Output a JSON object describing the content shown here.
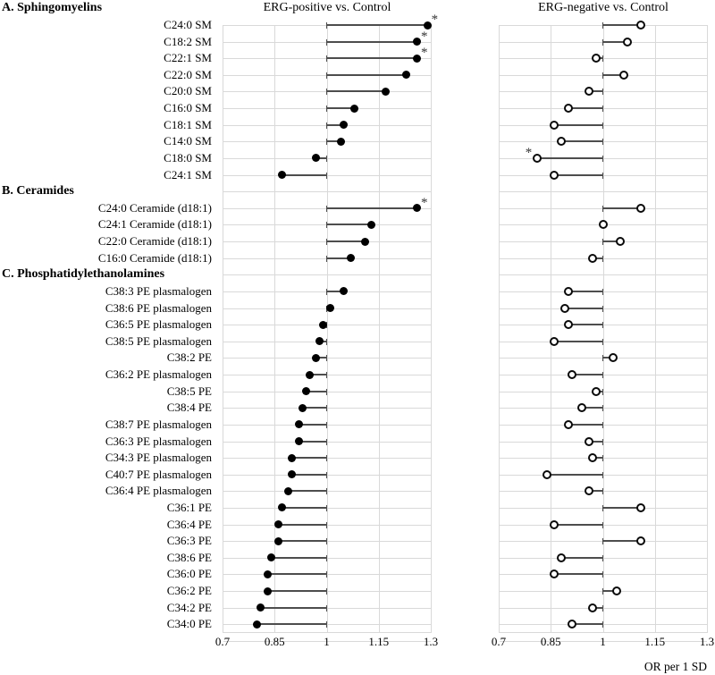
{
  "chart_data": {
    "type": "scatter",
    "subtype": "lollipop-forest-plot",
    "significance_marker": "*",
    "x_axis": {
      "range": [
        0.7,
        1.3
      ],
      "baseline": 1,
      "ticks": [
        0.7,
        0.85,
        1,
        1.15,
        1.3
      ],
      "tick_labels": [
        "0.7",
        "0.85",
        "1",
        "1.15",
        "1.3"
      ],
      "label": "OR per 1 SD",
      "grid": true
    },
    "panels": [
      {
        "title": "ERG-positive vs. Control",
        "marker": "filled-circle"
      },
      {
        "title": "ERG-negative vs. Control",
        "marker": "open-circle"
      }
    ],
    "style": {
      "grid_color": "#d9d9d9",
      "stem_color": "#4d4d4d",
      "marker_color": "#000000",
      "background": "#ffffff"
    },
    "groups": [
      {
        "label": "A. Sphingomyelins",
        "rows": [
          {
            "label": "C24:0 SM",
            "pos": 1.29,
            "pos_sig": true,
            "neg": 1.11,
            "neg_sig": false
          },
          {
            "label": "C18:2 SM",
            "pos": 1.26,
            "pos_sig": true,
            "neg": 1.07,
            "neg_sig": false
          },
          {
            "label": "C22:1 SM",
            "pos": 1.26,
            "pos_sig": true,
            "neg": 0.98,
            "neg_sig": false
          },
          {
            "label": "C22:0 SM",
            "pos": 1.23,
            "pos_sig": false,
            "neg": 1.06,
            "neg_sig": false
          },
          {
            "label": "C20:0 SM",
            "pos": 1.17,
            "pos_sig": false,
            "neg": 0.96,
            "neg_sig": false
          },
          {
            "label": "C16:0 SM",
            "pos": 1.08,
            "pos_sig": false,
            "neg": 0.9,
            "neg_sig": false
          },
          {
            "label": "C18:1 SM",
            "pos": 1.05,
            "pos_sig": false,
            "neg": 0.86,
            "neg_sig": false
          },
          {
            "label": "C14:0 SM",
            "pos": 1.04,
            "pos_sig": false,
            "neg": 0.88,
            "neg_sig": false
          },
          {
            "label": "C18:0 SM",
            "pos": 0.97,
            "pos_sig": false,
            "neg": 0.81,
            "neg_sig": true
          },
          {
            "label": "C24:1 SM",
            "pos": 0.87,
            "pos_sig": false,
            "neg": 0.86,
            "neg_sig": false
          }
        ]
      },
      {
        "label": "B. Ceramides",
        "rows": [
          {
            "label": "C24:0 Ceramide (d18:1)",
            "pos": 1.26,
            "pos_sig": true,
            "neg": 1.11,
            "neg_sig": false
          },
          {
            "label": "C24:1 Ceramide (d18:1)",
            "pos": 1.13,
            "pos_sig": false,
            "neg": 1.0,
            "neg_sig": false
          },
          {
            "label": "C22:0 Ceramide (d18:1)",
            "pos": 1.11,
            "pos_sig": false,
            "neg": 1.05,
            "neg_sig": false
          },
          {
            "label": "C16:0 Ceramide (d18:1)",
            "pos": 1.07,
            "pos_sig": false,
            "neg": 0.97,
            "neg_sig": false
          }
        ]
      },
      {
        "label": "C. Phosphatidylethanolamines",
        "rows": [
          {
            "label": "C38:3 PE plasmalogen",
            "pos": 1.05,
            "pos_sig": false,
            "neg": 0.9,
            "neg_sig": false
          },
          {
            "label": "C38:6 PE plasmalogen",
            "pos": 1.01,
            "pos_sig": false,
            "neg": 0.89,
            "neg_sig": false
          },
          {
            "label": "C36:5 PE plasmalogen",
            "pos": 0.99,
            "pos_sig": false,
            "neg": 0.9,
            "neg_sig": false
          },
          {
            "label": "C38:5 PE plasmalogen",
            "pos": 0.98,
            "pos_sig": false,
            "neg": 0.86,
            "neg_sig": false
          },
          {
            "label": "C38:2 PE",
            "pos": 0.97,
            "pos_sig": false,
            "neg": 1.03,
            "neg_sig": false
          },
          {
            "label": "C36:2 PE plasmalogen",
            "pos": 0.95,
            "pos_sig": false,
            "neg": 0.91,
            "neg_sig": false
          },
          {
            "label": "C38:5 PE",
            "pos": 0.94,
            "pos_sig": false,
            "neg": 0.98,
            "neg_sig": false
          },
          {
            "label": "C38:4 PE",
            "pos": 0.93,
            "pos_sig": false,
            "neg": 0.94,
            "neg_sig": false
          },
          {
            "label": "C38:7 PE plasmalogen",
            "pos": 0.92,
            "pos_sig": false,
            "neg": 0.9,
            "neg_sig": false
          },
          {
            "label": "C36:3 PE plasmalogen",
            "pos": 0.92,
            "pos_sig": false,
            "neg": 0.96,
            "neg_sig": false
          },
          {
            "label": "C34:3 PE plasmalogen",
            "pos": 0.9,
            "pos_sig": false,
            "neg": 0.97,
            "neg_sig": false
          },
          {
            "label": "C40:7 PE plasmalogen",
            "pos": 0.9,
            "pos_sig": false,
            "neg": 0.84,
            "neg_sig": false
          },
          {
            "label": "C36:4 PE plasmalogen",
            "pos": 0.89,
            "pos_sig": false,
            "neg": 0.96,
            "neg_sig": false
          },
          {
            "label": "C36:1 PE",
            "pos": 0.87,
            "pos_sig": false,
            "neg": 1.11,
            "neg_sig": false
          },
          {
            "label": "C36:4 PE",
            "pos": 0.86,
            "pos_sig": false,
            "neg": 0.86,
            "neg_sig": false
          },
          {
            "label": "C36:3 PE",
            "pos": 0.86,
            "pos_sig": false,
            "neg": 1.11,
            "neg_sig": false
          },
          {
            "label": "C38:6 PE",
            "pos": 0.84,
            "pos_sig": false,
            "neg": 0.88,
            "neg_sig": false
          },
          {
            "label": "C36:0 PE",
            "pos": 0.83,
            "pos_sig": false,
            "neg": 0.86,
            "neg_sig": false
          },
          {
            "label": "C36:2 PE",
            "pos": 0.83,
            "pos_sig": false,
            "neg": 1.04,
            "neg_sig": false
          },
          {
            "label": "C34:2 PE",
            "pos": 0.81,
            "pos_sig": false,
            "neg": 0.97,
            "neg_sig": false
          },
          {
            "label": "C34:0 PE",
            "pos": 0.8,
            "pos_sig": false,
            "neg": 0.91,
            "neg_sig": false
          }
        ]
      }
    ]
  }
}
